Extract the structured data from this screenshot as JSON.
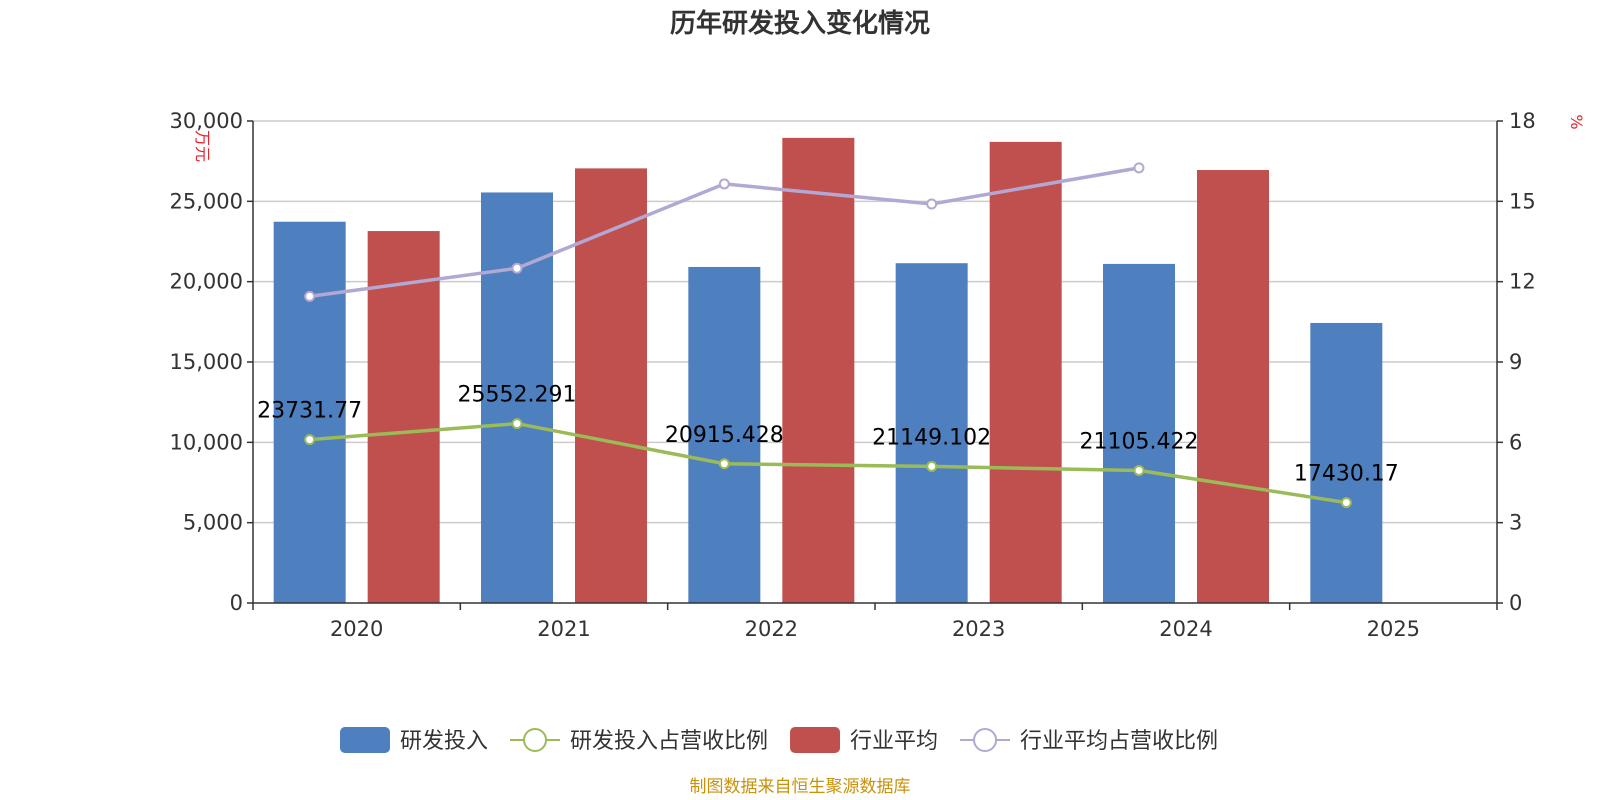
{
  "chart_data": {
    "type": "bar",
    "title": "历年研发投入变化情况",
    "categories": [
      "2020",
      "2021",
      "2022",
      "2023",
      "2024",
      "2025"
    ],
    "y_left": {
      "unit": "万元",
      "ylim": [
        0,
        30000
      ],
      "ticks": [
        "0",
        "5,000",
        "10,000",
        "15,000",
        "20,000",
        "25,000",
        "30,000"
      ],
      "tick_values": [
        0,
        5000,
        10000,
        15000,
        20000,
        25000,
        30000
      ]
    },
    "y_right": {
      "unit": "%",
      "ylim": [
        0,
        18
      ],
      "ticks": [
        "0",
        "3",
        "6",
        "9",
        "12",
        "15",
        "18"
      ],
      "tick_values": [
        0,
        3,
        6,
        9,
        12,
        15,
        18
      ]
    },
    "series": [
      {
        "name": "研发投入",
        "type": "bar",
        "axis": "left",
        "color": "#4e7fbe",
        "values": [
          23731.77,
          25552.291,
          20915.428,
          21149.102,
          21105.422,
          17430.17
        ],
        "labels": [
          "23731.77",
          "25552.291",
          "20915.428",
          "21149.102",
          "21105.422",
          "17430.17"
        ]
      },
      {
        "name": "研发投入占营收比例",
        "type": "line",
        "axis": "right",
        "color": "#9bbb59",
        "values": [
          6.1,
          6.7,
          5.2,
          5.1,
          4.95,
          3.75
        ]
      },
      {
        "name": "行业平均",
        "type": "bar",
        "axis": "left",
        "color": "#c0504d",
        "values": [
          23150,
          27050,
          28950,
          28700,
          26950,
          null
        ]
      },
      {
        "name": "行业平均占营收比例",
        "type": "line",
        "axis": "right",
        "color": "#b3a8d3",
        "values": [
          11.45,
          12.5,
          15.65,
          14.9,
          16.25,
          null
        ]
      }
    ],
    "grid": true,
    "legend": "bottom"
  },
  "source_note": "制图数据来自恒生聚源数据库",
  "colors": {
    "axis_unit": "#e8212a",
    "source": "#c8920a",
    "grid": "#cccccc",
    "axis": "#333333"
  }
}
